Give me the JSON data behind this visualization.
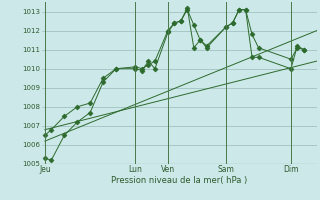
{
  "background_color": "#cce8e8",
  "grid_color": "#99bbbb",
  "line_color": "#2d6a2d",
  "marker_color": "#2d6a2d",
  "xlabel": "Pression niveau de la mer( hPa )",
  "ylim": [
    1005,
    1013.5
  ],
  "yticks": [
    1005,
    1006,
    1007,
    1008,
    1009,
    1010,
    1011,
    1012,
    1013
  ],
  "x_day_labels": [
    "Jeu",
    "Lun",
    "Ven",
    "Sam",
    "Dim"
  ],
  "x_day_positions": [
    0,
    14,
    19,
    28,
    38
  ],
  "xlim": [
    -0.5,
    42
  ],
  "series1_x": [
    0,
    1,
    3,
    5,
    7,
    9,
    11,
    14,
    15,
    16,
    17,
    19,
    20,
    21,
    22,
    23,
    24,
    25,
    28,
    29,
    30,
    31,
    32,
    33,
    38,
    39,
    40
  ],
  "series1_y": [
    1005.3,
    1005.2,
    1006.5,
    1007.2,
    1007.7,
    1009.3,
    1010.0,
    1010.0,
    1009.9,
    1010.4,
    1010.0,
    1011.9,
    1012.4,
    1012.5,
    1013.1,
    1012.3,
    1011.5,
    1011.1,
    1012.2,
    1012.4,
    1013.1,
    1013.1,
    1011.8,
    1011.1,
    1010.5,
    1011.1,
    1011.0
  ],
  "series2_x": [
    0,
    42
  ],
  "series2_y": [
    1006.2,
    1012.0
  ],
  "series3_x": [
    0,
    42
  ],
  "series3_y": [
    1006.8,
    1010.4
  ],
  "series4_x": [
    0,
    1,
    3,
    5,
    7,
    9,
    11,
    14,
    15,
    16,
    17,
    19,
    20,
    21,
    22,
    23,
    24,
    25,
    28,
    29,
    30,
    31,
    32,
    33,
    38,
    39,
    40
  ],
  "series4_y": [
    1006.5,
    1006.8,
    1007.5,
    1008.0,
    1008.2,
    1009.5,
    1010.0,
    1010.1,
    1010.0,
    1010.2,
    1010.4,
    1012.0,
    1012.4,
    1012.5,
    1013.2,
    1011.1,
    1011.5,
    1011.2,
    1012.2,
    1012.4,
    1013.1,
    1013.1,
    1010.6,
    1010.6,
    1010.0,
    1011.2,
    1011.0
  ]
}
